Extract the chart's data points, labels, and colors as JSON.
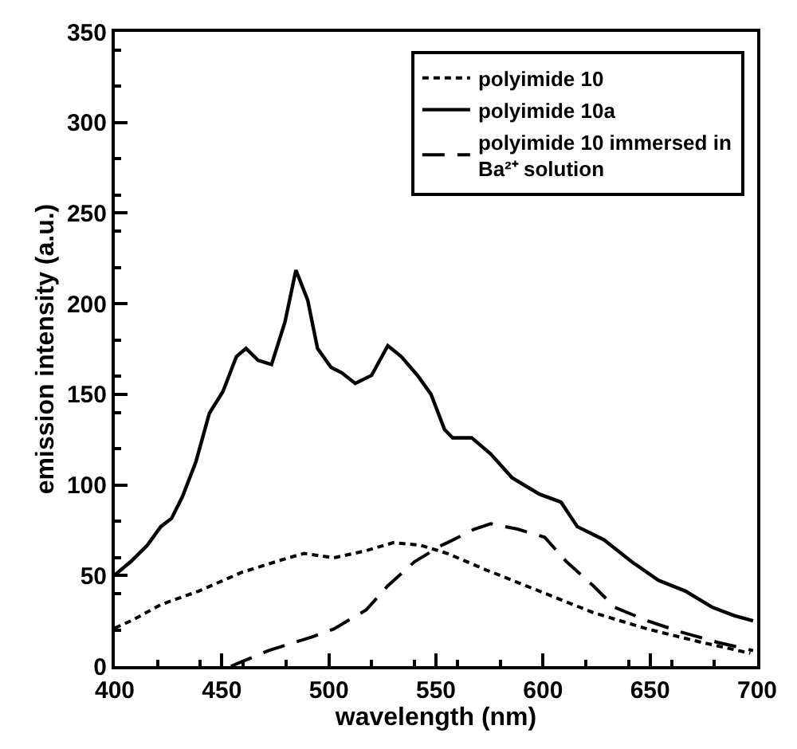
{
  "chart_data": {
    "type": "line",
    "xlabel": "wavelength (nm)",
    "ylabel": "emission intensity (a.u.)",
    "xlim": [
      400,
      700
    ],
    "xticks": [
      400,
      450,
      500,
      550,
      600,
      650,
      700
    ],
    "ylim": [
      0,
      350
    ],
    "yticks": [
      0,
      50,
      100,
      150,
      200,
      250,
      300,
      350
    ],
    "grid": false,
    "legend": "top right",
    "marker": "none",
    "series": [
      {
        "name": "polyimide 10",
        "color": "#000000",
        "line_style": "dashed",
        "x": [
          400,
          407.6,
          421.5,
          439.2,
          459.4,
          479.5,
          488.4,
          502.3,
          517.4,
          530,
          542.7,
          555.3,
          573,
          598.3,
          623.5,
          648.8,
          674.1,
          696.8
        ],
        "values": [
          21,
          25,
          33.9,
          41.4,
          51.8,
          59.2,
          62.2,
          59.8,
          63.7,
          68.1,
          66.7,
          62.2,
          53.3,
          41.4,
          29.5,
          20.5,
          13.1,
          7.1
        ]
      },
      {
        "name": "polyimide 10a",
        "color": "#000000",
        "line_style": "solid",
        "x": [
          400,
          407.6,
          415.2,
          421.5,
          426.5,
          431.6,
          437.9,
          444.2,
          450.5,
          456.8,
          461.3,
          466.9,
          473.2,
          479.5,
          484.6,
          490.1,
          494.7,
          501,
          506,
          512.3,
          519.9,
          527.5,
          533.8,
          541.4,
          547.7,
          554,
          557.8,
          566.7,
          575.5,
          585.6,
          598.3,
          608.4,
          616,
          628.6,
          641.3,
          653.9,
          666.5,
          679.2,
          689.3,
          698.1
        ],
        "values": [
          50.3,
          57.8,
          66.7,
          77,
          81.5,
          93.5,
          112.8,
          139.6,
          151.5,
          170.8,
          175.3,
          168.8,
          166.4,
          190,
          218.5,
          202,
          175.3,
          164.9,
          161.9,
          156,
          160.4,
          176.8,
          170.8,
          160.4,
          150,
          130.6,
          126,
          126,
          117.2,
          103.9,
          94.9,
          90.5,
          77,
          69.6,
          57.7,
          47.3,
          41.4,
          32.4,
          27.9,
          25
        ]
      },
      {
        "name": "polyimide 10 immersed in Ba²⁺ solution",
        "color": "#000000",
        "line_style": "dashed",
        "x": [
          454.3,
          471.9,
          492.1,
          502.3,
          517.4,
          527.5,
          540.1,
          552.7,
          555.3,
          568,
          575.5,
          588.1,
          600.8,
          610.9,
          623.5,
          633.6,
          648.8,
          663.9,
          681.6,
          698.1
        ],
        "values": [
          0,
          8.6,
          16.1,
          20.5,
          31,
          44.3,
          57.7,
          66.7,
          68.1,
          75.6,
          78.6,
          75.6,
          71.1,
          57.7,
          44.3,
          32.4,
          25,
          19,
          13.1,
          8.6
        ]
      }
    ]
  }
}
